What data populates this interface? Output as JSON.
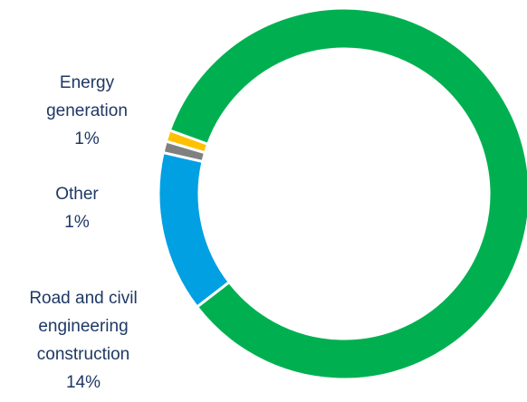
{
  "chart_data": {
    "type": "pie",
    "donut": true,
    "title": "",
    "label_color": "#1f3864",
    "slices": [
      {
        "name": "Energy generation",
        "value": 1,
        "percent_label": "1%",
        "color": "#ffc000",
        "label_lines": [
          "Energy",
          "generation",
          "1%"
        ]
      },
      {
        "name": "Other",
        "value": 1,
        "percent_label": "1%",
        "color": "#808080",
        "label_lines": [
          "Other",
          "1%"
        ]
      },
      {
        "name": "Road and civil engineering construction",
        "value": 14,
        "percent_label": "14%",
        "color": "#00a0e3",
        "label_lines": [
          "Road and civil",
          "engineering",
          "construction",
          "14%"
        ]
      },
      {
        "name": "",
        "value": 84,
        "percent_label": "",
        "color": "#00b050",
        "label_lines": []
      }
    ]
  }
}
